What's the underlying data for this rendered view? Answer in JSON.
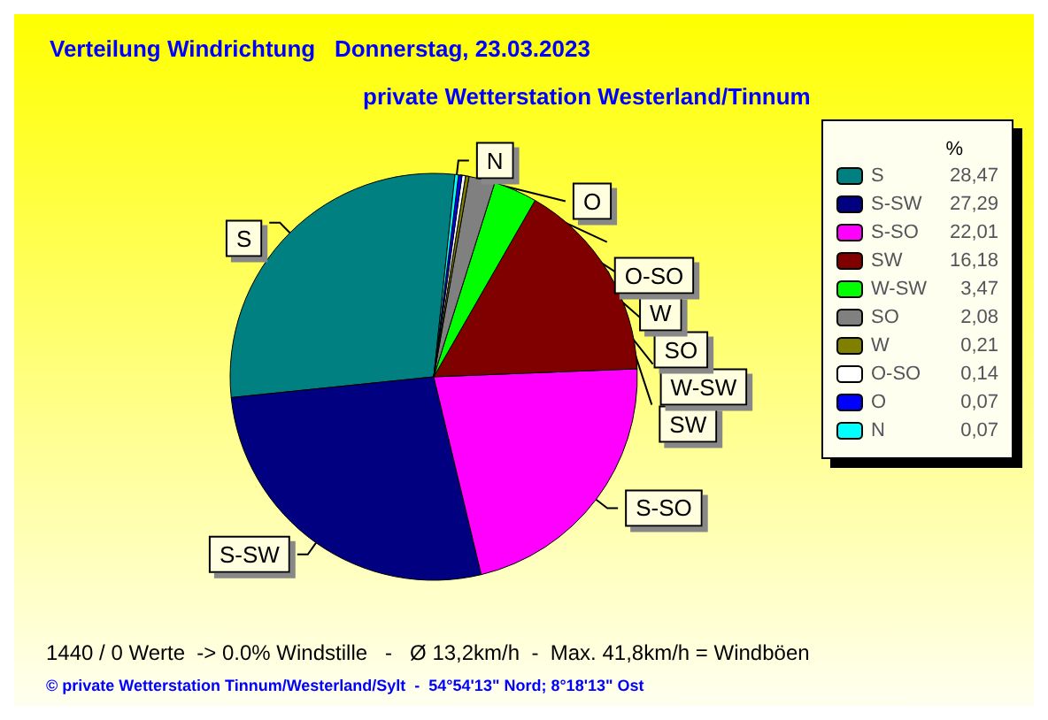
{
  "chart_data": {
    "type": "pie",
    "title": "Verteilung Windrichtung   Donnerstag, 23.03.2023",
    "subtitle": "private Wetterstation Westerland/Tinnum",
    "categories": [
      "S",
      "S-SW",
      "S-SO",
      "SW",
      "W-SW",
      "SO",
      "W",
      "O-SO",
      "O",
      "N"
    ],
    "values": [
      28.47,
      27.29,
      22.01,
      16.18,
      3.47,
      2.08,
      0.21,
      0.14,
      0.07,
      0.07
    ],
    "colors": [
      "#008080",
      "#000080",
      "#ff00ff",
      "#800000",
      "#00ff00",
      "#808080",
      "#808000",
      "#ffffff",
      "#0000ff",
      "#00ffff"
    ],
    "value_labels": [
      "28,47",
      "27,29",
      "22,01",
      "16,18",
      "3,47",
      "2,08",
      "0,21",
      "0,14",
      "0,07",
      "0,07"
    ],
    "legend": "top right",
    "legend_title": "%",
    "annotations": [
      "1440 / 0 Werte  -> 0.0% Windstille   -   Ø 13,2km/h  -  Max. 41,8km/h = Windböen",
      "© private Wetterstation Tinnum/Westerland/Sylt  -  54°54'13\" Nord; 8°18'13\" Ost"
    ]
  }
}
